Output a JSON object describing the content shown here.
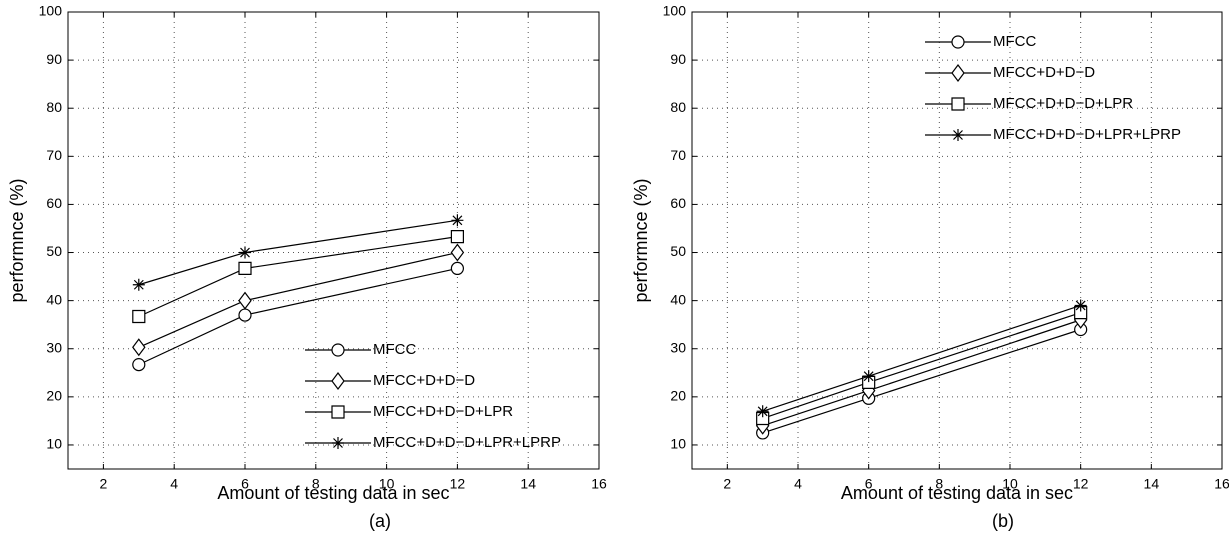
{
  "chart_data": [
    {
      "type": "line",
      "annotation": "(a)",
      "xlabel": "Amount of testing data in sec",
      "ylabel": "performnce (%)",
      "x": [
        3,
        6,
        12
      ],
      "xlim": [
        1,
        16
      ],
      "xticks": [
        2,
        4,
        6,
        8,
        10,
        12,
        14,
        16
      ],
      "ylim": [
        5,
        100
      ],
      "yticks": [
        10,
        20,
        30,
        40,
        50,
        60,
        70,
        80,
        90,
        100
      ],
      "grid": true,
      "legend": "lower right",
      "series": [
        {
          "name": "MFCC",
          "color": "#000000",
          "marker": "circle",
          "values": [
            26.7,
            37,
            46.7
          ]
        },
        {
          "name": "MFCC+D+D−D",
          "color": "#000000",
          "marker": "diamond",
          "values": [
            30.3,
            40,
            50
          ]
        },
        {
          "name": "MFCC+D+D−D+LPR",
          "color": "#000000",
          "marker": "square",
          "values": [
            36.7,
            46.7,
            53.3
          ]
        },
        {
          "name": "MFCC+D+D−D+LPR+LPRP",
          "color": "#000000",
          "marker": "star",
          "values": [
            43.3,
            50,
            56.7
          ]
        }
      ]
    },
    {
      "type": "line",
      "annotation": "(b)",
      "xlabel": "Amount of testing data in sec",
      "ylabel": "performnce (%)",
      "x": [
        3,
        6,
        12
      ],
      "xlim": [
        1,
        16
      ],
      "xticks": [
        2,
        4,
        6,
        8,
        10,
        12,
        14,
        16
      ],
      "ylim": [
        5,
        100
      ],
      "yticks": [
        10,
        20,
        30,
        40,
        50,
        60,
        70,
        80,
        90,
        100
      ],
      "grid": true,
      "legend": "upper center",
      "series": [
        {
          "name": "MFCC",
          "color": "#000000",
          "marker": "circle",
          "values": [
            12.5,
            19.7,
            34
          ]
        },
        {
          "name": "MFCC+D+D−D",
          "color": "#000000",
          "marker": "diamond",
          "values": [
            14,
            21.3,
            36
          ]
        },
        {
          "name": "MFCC+D+D−D+LPR",
          "color": "#000000",
          "marker": "square",
          "values": [
            15.5,
            23,
            37.5
          ]
        },
        {
          "name": "MFCC+D+D−D+LPR+LPRP",
          "color": "#000000",
          "marker": "star",
          "values": [
            17,
            24.3,
            39
          ]
        }
      ]
    }
  ]
}
